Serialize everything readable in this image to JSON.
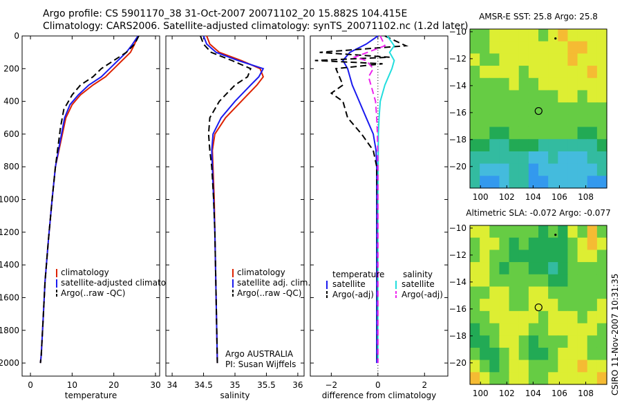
{
  "header": {
    "line1": "Argo profile: CS 5901170_38 31-Oct-2007 20071102_20 15.882S 104.415E",
    "line2": "Climatology: CARS2006. Satellite-adjusted climatology: synTS_20071102.nc (1.2d later)"
  },
  "credit": "CSIRO 11-Nov-2007 10:31:35",
  "colors": {
    "clim": "#dd2200",
    "sat": "#1a1aee",
    "argo": "#000000",
    "sal_sat": "#22dddd",
    "sal_argo": "#ee22ee"
  },
  "chart_data": [
    {
      "type": "line",
      "xlabel": "temperature",
      "xlim": [
        -2,
        31
      ],
      "ylim": [
        2080,
        0
      ],
      "xticks": [
        0,
        10,
        20,
        30
      ],
      "yticks": [
        0,
        200,
        400,
        600,
        800,
        1000,
        1200,
        1400,
        1600,
        1800,
        2000
      ],
      "legend": [
        "climatology",
        "satellite-adjusted climatology",
        "Argo(..raw -QC)"
      ],
      "series": [
        {
          "name": "climatology",
          "style": "clim",
          "x": [
            25.8,
            25,
            24,
            22,
            20,
            18,
            15,
            12,
            10,
            8.5,
            7.5,
            6,
            5.2,
            4.3,
            3.5,
            3,
            2.6,
            2.4
          ],
          "y": [
            0,
            50,
            100,
            150,
            200,
            250,
            300,
            360,
            420,
            500,
            620,
            800,
            1000,
            1250,
            1500,
            1750,
            1950,
            2000
          ]
        },
        {
          "name": "satellite-adjusted climatology",
          "style": "sat",
          "x": [
            25.8,
            24.5,
            23,
            21,
            19,
            17,
            14,
            11.5,
            9.5,
            8.2,
            7.3,
            6,
            5.2,
            4.3,
            3.5,
            3,
            2.6,
            2.4
          ],
          "y": [
            0,
            50,
            100,
            150,
            200,
            250,
            300,
            360,
            420,
            500,
            620,
            800,
            1000,
            1250,
            1500,
            1750,
            1950,
            2000
          ]
        },
        {
          "name": "Argo(..raw -QC)",
          "style": "argo",
          "x": [
            26,
            25,
            23,
            20,
            17,
            15,
            12,
            10,
            8,
            7.2,
            6,
            5.2,
            4.3,
            3.5,
            3,
            2.6,
            2.4
          ],
          "y": [
            0,
            50,
            100,
            150,
            200,
            250,
            300,
            360,
            450,
            560,
            800,
            1000,
            1250,
            1500,
            1750,
            1950,
            2000
          ]
        }
      ]
    },
    {
      "type": "line",
      "xlabel": "salinity",
      "xlim": [
        33.9,
        36.1
      ],
      "ylim": [
        2080,
        0
      ],
      "xticks": [
        34,
        34.5,
        35,
        35.5,
        36
      ],
      "yticks": [
        0,
        200,
        400,
        600,
        800,
        1000,
        1200,
        1400,
        1600,
        1800,
        2000
      ],
      "legend": [
        "climatology",
        "satellite adj. clim.",
        "Argo(..raw -QC)"
      ],
      "annotation": [
        "Argo AUSTRALIA",
        "PI: Susan Wijffels"
      ],
      "series": [
        {
          "name": "climatology",
          "style": "clim",
          "x": [
            34.55,
            34.6,
            34.75,
            35.1,
            35.4,
            35.45,
            35.35,
            35.1,
            34.85,
            34.68,
            34.64,
            34.65,
            34.67,
            34.68,
            34.69,
            34.7,
            34.71,
            34.72
          ],
          "y": [
            0,
            50,
            100,
            150,
            200,
            250,
            300,
            400,
            500,
            600,
            700,
            800,
            1000,
            1200,
            1400,
            1600,
            1800,
            2000
          ]
        },
        {
          "name": "satellite adj. clim.",
          "style": "sat",
          "x": [
            34.5,
            34.55,
            34.7,
            35.05,
            35.45,
            35.38,
            35.25,
            35.0,
            34.78,
            34.65,
            34.63,
            34.64,
            34.66,
            34.68,
            34.69,
            34.7,
            34.71,
            34.72
          ],
          "y": [
            0,
            50,
            100,
            150,
            200,
            250,
            300,
            400,
            500,
            600,
            700,
            800,
            1000,
            1200,
            1400,
            1600,
            1800,
            2000
          ]
        },
        {
          "name": "Argo(..raw -QC)",
          "style": "argo",
          "x": [
            34.45,
            34.5,
            34.62,
            34.95,
            35.25,
            35.2,
            35.0,
            34.75,
            34.6,
            34.58,
            34.6,
            34.63,
            34.66,
            34.68,
            34.69,
            34.7,
            34.71,
            34.72
          ],
          "y": [
            0,
            50,
            100,
            150,
            200,
            250,
            300,
            400,
            500,
            600,
            700,
            800,
            1000,
            1200,
            1400,
            1600,
            1800,
            2000
          ]
        }
      ]
    },
    {
      "type": "line",
      "xlabel": "difference from climatology",
      "xlim": [
        -2.9,
        3
      ],
      "ylim": [
        2080,
        0
      ],
      "xticks": [
        -2,
        0,
        2
      ],
      "yticks": [
        0,
        200,
        400,
        600,
        800,
        1000,
        1200,
        1400,
        1600,
        1800,
        2000
      ],
      "legend_title": [
        "temperature",
        "salinity"
      ],
      "legend": [
        "satellite",
        "Argo(-adj)",
        "satellite",
        "Argo(-adj)"
      ],
      "series": [
        {
          "name": "satellite",
          "style": "sat",
          "x": [
            0,
            -0.5,
            -1.2,
            -1.5,
            -1.3,
            -1.1,
            -0.8,
            -0.5,
            -0.2,
            -0.08,
            -0.05,
            -0.05,
            -0.05,
            -0.05,
            -0.05,
            -0.05
          ],
          "y": [
            0,
            50,
            100,
            150,
            200,
            300,
            400,
            500,
            600,
            700,
            800,
            1000,
            1200,
            1500,
            1800,
            2000
          ]
        },
        {
          "name": "Argo(-adj)",
          "style": "argo",
          "x": [
            0.3,
            1.2,
            -2.5,
            0.5,
            -2.7,
            0.2,
            -1.8,
            -1.5,
            -2.0,
            -1.5,
            -1.3,
            -0.7,
            -0.2,
            -0.05,
            -0.03,
            -0.02,
            -0.02
          ],
          "y": [
            0,
            60,
            100,
            130,
            150,
            170,
            200,
            300,
            350,
            400,
            500,
            600,
            700,
            800,
            1000,
            1500,
            2000
          ]
        },
        {
          "name": "satellite",
          "style": "sal_sat",
          "x": [
            0.4,
            0.7,
            0.5,
            0.7,
            0.6,
            0.3,
            0.1,
            0.05,
            0.02,
            0.01,
            0,
            0,
            0,
            0
          ],
          "y": [
            0,
            60,
            100,
            150,
            200,
            300,
            400,
            500,
            600,
            800,
            1000,
            1200,
            1600,
            2000
          ]
        },
        {
          "name": "Argo(-adj)",
          "style": "sal_argo",
          "x": [
            0.1,
            0.3,
            -1.0,
            -0.5,
            -0.2,
            -0.4,
            -0.3,
            -0.1,
            -0.05,
            -0.02,
            0,
            0,
            0
          ],
          "y": [
            0,
            60,
            130,
            150,
            200,
            250,
            300,
            400,
            500,
            600,
            800,
            1400,
            2000
          ]
        }
      ]
    },
    {
      "type": "heatmap",
      "title": "AMSR-E SST: 25.8  Argo: 25.8",
      "xlim": [
        99.2,
        109.6
      ],
      "ylim": [
        -21.6,
        -9.8
      ],
      "xticks": [
        100,
        102,
        104,
        106,
        108
      ],
      "yticks": [
        -10,
        -12,
        -14,
        -16,
        -18,
        -20
      ],
      "marker": {
        "x": 104.415,
        "y": -15.882
      },
      "rows": [
        [
          "g",
          "g",
          "y",
          "y",
          "y",
          "y",
          "y",
          "g",
          "y",
          "o",
          "y",
          "y",
          "y",
          "y"
        ],
        [
          "g",
          "g",
          "y",
          "y",
          "y",
          "y",
          "y",
          "y",
          "y",
          "y",
          "o",
          "o",
          "y",
          "y"
        ],
        [
          "y",
          "g",
          "g",
          "y",
          "y",
          "y",
          "y",
          "y",
          "y",
          "y",
          "o",
          "y",
          "y",
          "y"
        ],
        [
          "g",
          "y",
          "y",
          "y",
          "y",
          "g",
          "y",
          "y",
          "y",
          "y",
          "y",
          "y",
          "o",
          "y"
        ],
        [
          "g",
          "g",
          "g",
          "g",
          "y",
          "g",
          "g",
          "y",
          "y",
          "y",
          "y",
          "y",
          "y",
          "y"
        ],
        [
          "g",
          "g",
          "g",
          "g",
          "g",
          "g",
          "g",
          "g",
          "g",
          "y",
          "y",
          "g",
          "y",
          "y"
        ],
        [
          "g",
          "g",
          "g",
          "g",
          "g",
          "g",
          "g",
          "g",
          "g",
          "g",
          "g",
          "g",
          "g",
          "g"
        ],
        [
          "g",
          "g",
          "g",
          "g",
          "g",
          "g",
          "g",
          "g",
          "g",
          "g",
          "g",
          "g",
          "g",
          "g"
        ],
        [
          "g",
          "g",
          "G",
          "G",
          "g",
          "g",
          "g",
          "g",
          "g",
          "g",
          "g",
          "G",
          "G",
          "g"
        ],
        [
          "G",
          "G",
          "t",
          "t",
          "G",
          "G",
          "G",
          "t",
          "t",
          "t",
          "t",
          "t",
          "t",
          "G"
        ],
        [
          "t",
          "t",
          "t",
          "t",
          "t",
          "t",
          "c",
          "c",
          "t",
          "c",
          "c",
          "c",
          "t",
          "t"
        ],
        [
          "t",
          "c",
          "c",
          "c",
          "t",
          "t",
          "b",
          "c",
          "c",
          "c",
          "c",
          "c",
          "c",
          "t"
        ],
        [
          "t",
          "b",
          "b",
          "c",
          "t",
          "t",
          "b",
          "b",
          "c",
          "c",
          "c",
          "c",
          "b",
          "b"
        ]
      ]
    },
    {
      "type": "heatmap",
      "title": "Altimetric SLA: -0.072  Argo: -0.077",
      "xlim": [
        99.2,
        109.6
      ],
      "ylim": [
        -21.6,
        -9.8
      ],
      "xticks": [
        100,
        102,
        104,
        106,
        108
      ],
      "yticks": [
        -10,
        -12,
        -14,
        -16,
        -18,
        -20
      ],
      "marker": {
        "x": 104.415,
        "y": -15.882
      },
      "rows": [
        [
          "y",
          "y",
          "g",
          "g",
          "g",
          "g",
          "g",
          "G",
          "g",
          "G",
          "y",
          "g",
          "o",
          "g"
        ],
        [
          "g",
          "y",
          "y",
          "g",
          "G",
          "g",
          "G",
          "G",
          "G",
          "G",
          "g",
          "y",
          "o",
          "y"
        ],
        [
          "g",
          "y",
          "g",
          "g",
          "G",
          "G",
          "G",
          "G",
          "G",
          "G",
          "g",
          "y",
          "y",
          "g"
        ],
        [
          "y",
          "y",
          "g",
          "G",
          "g",
          "g",
          "G",
          "G",
          "t",
          "G",
          "g",
          "g",
          "g",
          "g"
        ],
        [
          "y",
          "y",
          "g",
          "g",
          "g",
          "g",
          "g",
          "g",
          "G",
          "G",
          "g",
          "g",
          "g",
          "g"
        ],
        [
          "g",
          "g",
          "y",
          "y",
          "g",
          "g",
          "y",
          "y",
          "g",
          "g",
          "g",
          "g",
          "g",
          "g"
        ],
        [
          "g",
          "y",
          "y",
          "y",
          "g",
          "g",
          "y",
          "y",
          "y",
          "g",
          "g",
          "g",
          "g",
          "y"
        ],
        [
          "g",
          "g",
          "y",
          "y",
          "y",
          "y",
          "y",
          "g",
          "y",
          "y",
          "y",
          "g",
          "y",
          "y"
        ],
        [
          "G",
          "g",
          "g",
          "y",
          "y",
          "y",
          "g",
          "g",
          "y",
          "y",
          "y",
          "y",
          "y",
          "g"
        ],
        [
          "G",
          "G",
          "g",
          "y",
          "y",
          "g",
          "G",
          "g",
          "g",
          "g",
          "y",
          "y",
          "g",
          "g"
        ],
        [
          "g",
          "G",
          "G",
          "g",
          "y",
          "g",
          "G",
          "G",
          "g",
          "y",
          "y",
          "y",
          "g",
          "g"
        ],
        [
          "y",
          "g",
          "G",
          "g",
          "y",
          "y",
          "g",
          "g",
          "g",
          "y",
          "y",
          "o",
          "y",
          "y"
        ],
        [
          "o",
          "y",
          "g",
          "g",
          "y",
          "y",
          "g",
          "g",
          "y",
          "y",
          "y",
          "y",
          "y",
          "o"
        ]
      ]
    }
  ],
  "palette": {
    "b": "#3399ee",
    "c": "#44bbdd",
    "t": "#33bba0",
    "G": "#22aa55",
    "g": "#66cc44",
    "y": "#ddee33",
    "o": "#f5bb33"
  }
}
